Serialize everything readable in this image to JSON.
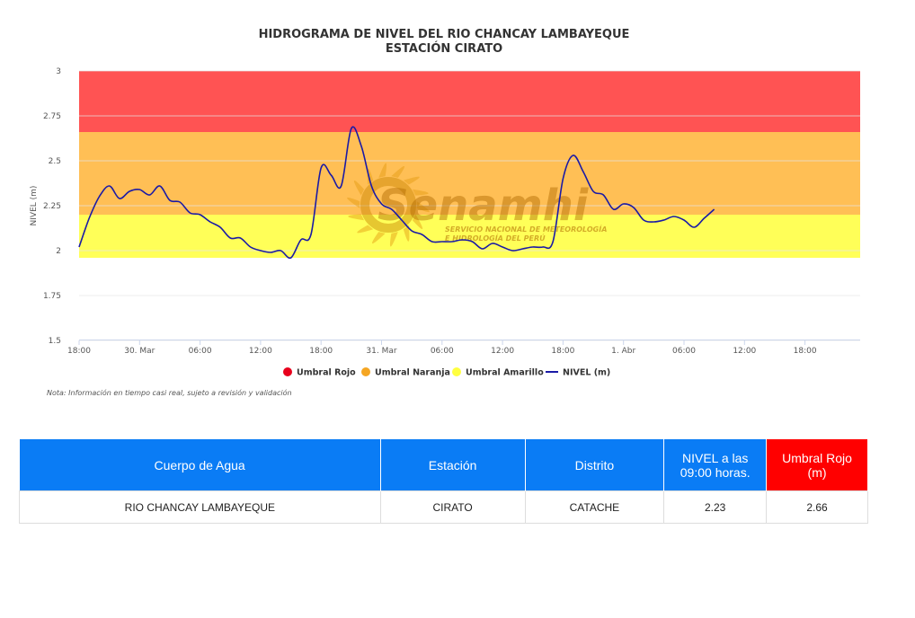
{
  "chart_data": {
    "type": "line",
    "title": "HIDROGRAMA DE NIVEL DEL RIO CHANCAY LAMBAYEQUE",
    "subtitle": "ESTACIÓN CIRATO",
    "ylabel": "NIVEL (m)",
    "ylim": [
      1.5,
      3
    ],
    "yticks": [
      "1.5",
      "1.75",
      "2",
      "2.25",
      "2.5",
      "2.75",
      "3"
    ],
    "xticks": [
      "18:00",
      "30. Mar",
      "06:00",
      "12:00",
      "18:00",
      "31. Mar",
      "06:00",
      "12:00",
      "18:00",
      "1. Abr",
      "06:00",
      "12:00",
      "18:00"
    ],
    "bands": [
      {
        "name": "Umbral Rojo",
        "from": 2.66,
        "to": 3.0,
        "color": "#ff5353"
      },
      {
        "name": "Umbral Naranja",
        "from": 2.2,
        "to": 2.66,
        "color": "#ffbf55"
      },
      {
        "name": "Umbral Amarillo",
        "from": 1.96,
        "to": 2.2,
        "color": "#ffff58"
      }
    ],
    "series": [
      {
        "name": "NIVEL (m)",
        "color": "#1a1aa6",
        "x_hours": [
          0,
          1,
          2,
          3,
          4,
          5,
          6,
          7,
          8,
          9,
          10,
          11,
          12,
          13,
          14,
          15,
          16,
          17,
          18,
          19,
          20,
          21,
          22,
          23,
          24,
          25,
          26,
          27,
          28,
          29,
          30,
          31,
          32,
          33,
          34,
          35,
          36,
          37,
          38,
          39,
          40,
          41,
          42,
          43,
          44,
          45,
          46,
          47,
          48,
          49,
          50,
          51,
          52,
          53,
          54,
          55,
          56,
          57,
          58,
          59,
          60,
          61,
          62,
          63
        ],
        "values": [
          2.02,
          2.18,
          2.3,
          2.36,
          2.29,
          2.33,
          2.34,
          2.31,
          2.36,
          2.28,
          2.27,
          2.21,
          2.2,
          2.16,
          2.13,
          2.07,
          2.07,
          2.02,
          2.0,
          1.99,
          2.0,
          1.96,
          2.06,
          2.09,
          2.46,
          2.42,
          2.36,
          2.68,
          2.58,
          2.36,
          2.26,
          2.23,
          2.17,
          2.11,
          2.09,
          2.05,
          2.05,
          2.05,
          2.06,
          2.05,
          2.01,
          2.04,
          2.02,
          2.0,
          2.01,
          2.02,
          2.02,
          2.05,
          2.4,
          2.53,
          2.44,
          2.33,
          2.31,
          2.23,
          2.26,
          2.24,
          2.17,
          2.16,
          2.17,
          2.19,
          2.17,
          2.13,
          2.18,
          2.23
        ]
      }
    ],
    "legend": [
      "Umbral Rojo",
      "Umbral Naranja",
      "Umbral Amarillo",
      "NIVEL (m)"
    ],
    "legend_colors": [
      "#e8001c",
      "#f5a623",
      "#ffff40",
      "#1a1aa6"
    ],
    "legend_position": "bottom",
    "grid": true
  },
  "watermark": {
    "brand": "Senamhi",
    "tagline_1": "SERVICIO NACIONAL DE METEOROLOGÍA",
    "tagline_2": "E HIDROLOGÍA DEL PERÚ"
  },
  "note": "Nota: Información en tiempo casi real, sujeto a revisión y validación",
  "table": {
    "headers": [
      "Cuerpo de Agua",
      "Estación",
      "Distrito",
      "NIVEL a las 09:00 horas.",
      "Umbral Rojo (m)"
    ],
    "row": [
      "RIO CHANCAY LAMBAYEQUE",
      "CIRATO",
      "CATACHE",
      "2.23",
      "2.66"
    ]
  }
}
